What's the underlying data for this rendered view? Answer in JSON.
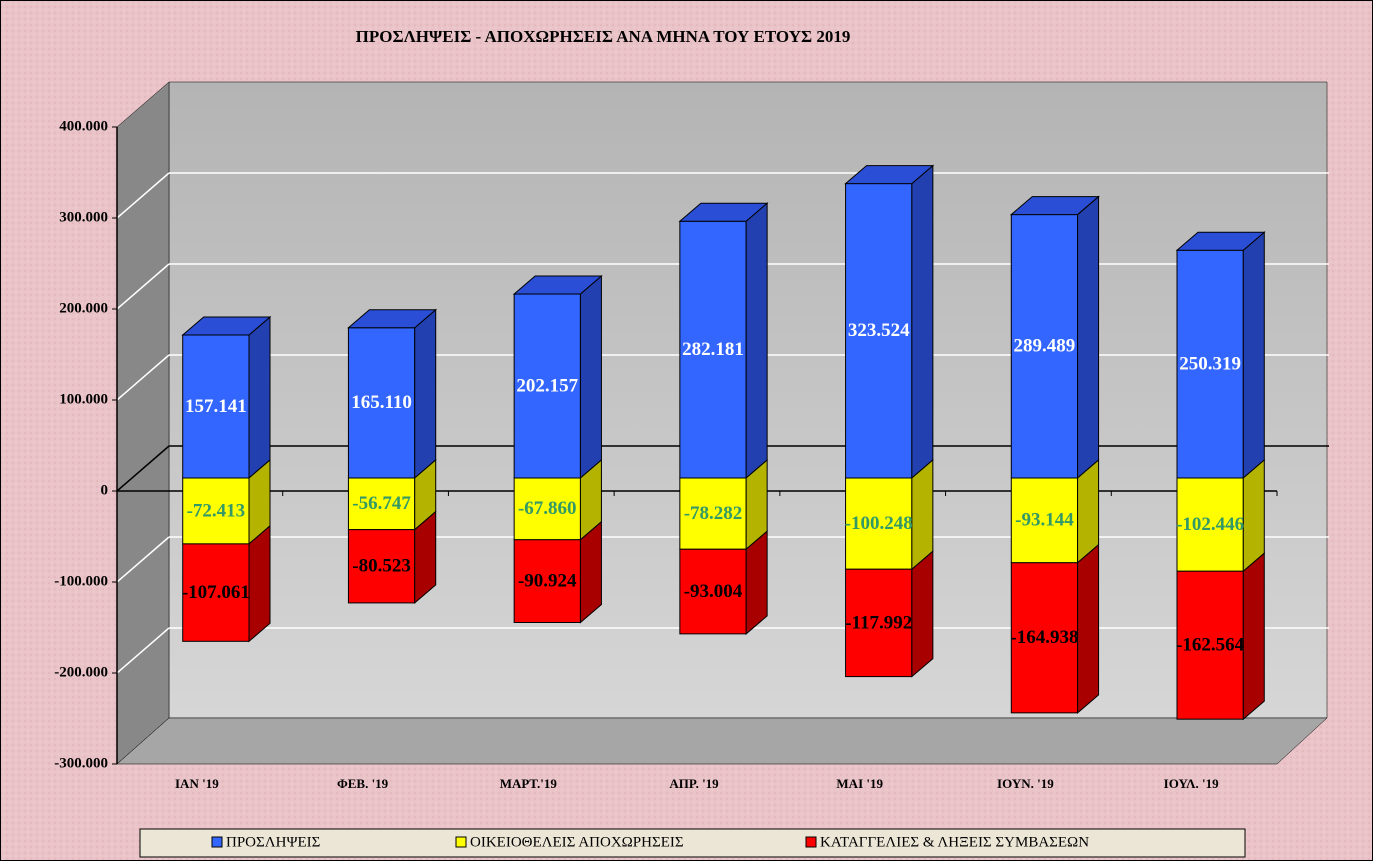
{
  "chart_data": {
    "type": "bar3d_stacked",
    "title": "ΠΡΟΣΛΗΨΕΙΣ - ΑΠΟΧΩΡΗΣΕΙΣ ΑΝΑ ΜΗΝΑ ΤΟΥ  ΕΤΟΥΣ 2019",
    "categories": [
      "ΙΑΝ  '19",
      "ΦΕΒ. '19",
      "ΜΑΡΤ.'19",
      "ΑΠΡ. '19",
      "ΜΑΙ  '19",
      "ΙΟΥΝ. '19",
      "ΙΟΥΛ. '19"
    ],
    "series": [
      {
        "name": "ΠΡΟΣΛΗΨΕΙΣ",
        "color": "#3366ff",
        "side": "#2340b0",
        "top": "#2a4fd6",
        "label_color": "#ffffff",
        "values": [
          157141,
          165110,
          202157,
          282181,
          323524,
          289489,
          250319
        ],
        "value_labels": [
          "157.141",
          "165.110",
          "202.157",
          "282.181",
          "323.524",
          "289.489",
          "250.319"
        ]
      },
      {
        "name": "ΟΙΚΕΙΟΘΕΛΕΙΣ ΑΠΟΧΩΡΗΣΕΙΣ",
        "color": "#ffff00",
        "side": "#b3b300",
        "top": "#d9d900",
        "label_color": "#339966",
        "values": [
          -72413,
          -56747,
          -67860,
          -78282,
          -100248,
          -93144,
          -102446
        ],
        "value_labels": [
          "-72.413",
          "-56.747",
          "-67.860",
          "-78.282",
          "-100.248",
          "-93.144",
          "-102.446"
        ]
      },
      {
        "name": "ΚΑΤΑΓΓΕΛΙΕΣ & ΛΗΞΕΙΣ ΣΥΜΒΑΣΕΩΝ",
        "color": "#ff0000",
        "side": "#a80000",
        "top": "#cc0000",
        "label_color": "#000000",
        "values": [
          -107061,
          -80523,
          -90924,
          -93004,
          -117992,
          -164938,
          -162564
        ],
        "value_labels": [
          "-107.061",
          "-80.523",
          "-90.924",
          "-93.004",
          "-117.992",
          "-164.938",
          "-162.564"
        ]
      }
    ],
    "ylim": [
      -300000,
      400000
    ],
    "yticks": [
      {
        "value": -300000,
        "label": "-300.000"
      },
      {
        "value": -200000,
        "label": "-200.000"
      },
      {
        "value": -100000,
        "label": "-100.000"
      },
      0,
      {
        "value": 100000,
        "label": "100.000"
      },
      {
        "value": 200000,
        "label": "200.000"
      },
      {
        "value": 300000,
        "label": "300.000"
      },
      {
        "value": 400000,
        "label": "400.000"
      }
    ],
    "grid": true,
    "legend": "bottom"
  }
}
